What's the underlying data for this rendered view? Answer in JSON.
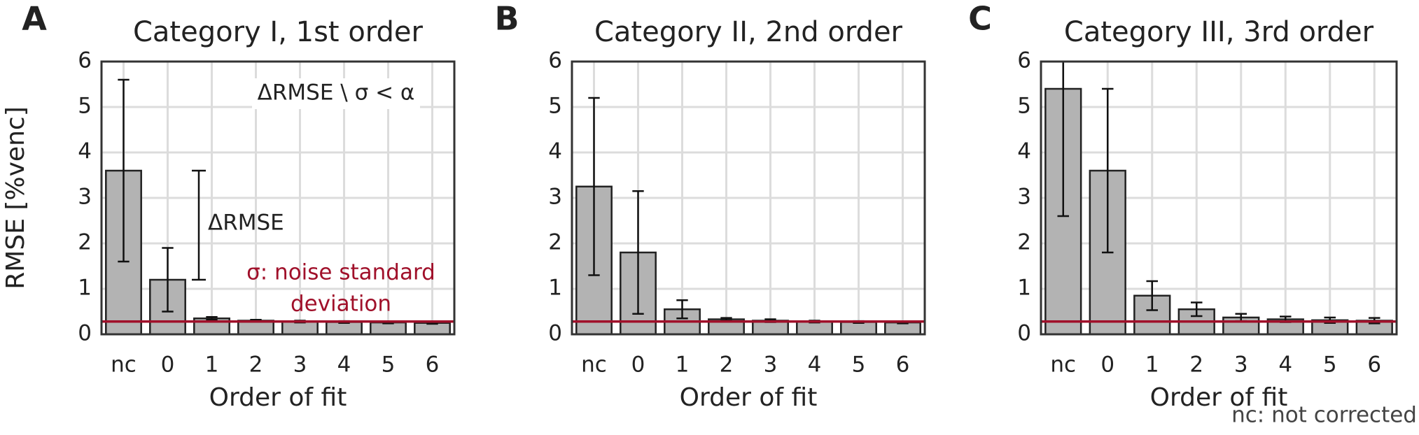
{
  "chart_data": [
    {
      "type": "bar",
      "panel_label": "A",
      "title": "Category I, 1st order",
      "xlabel": "Order of fit",
      "ylabel": "RMSE [%venc]",
      "categories": [
        "nc",
        "0",
        "1",
        "2",
        "3",
        "4",
        "5",
        "6"
      ],
      "values": [
        3.6,
        1.2,
        0.35,
        0.3,
        0.28,
        0.27,
        0.26,
        0.25
      ],
      "errors": [
        2.0,
        0.7,
        0.03,
        0.02,
        0.02,
        0.02,
        0.02,
        0.02
      ],
      "noise_level": 0.28,
      "color": "#b3b3b3",
      "noise_color": "#a0102a",
      "ylim": [
        0,
        6
      ],
      "yticks": [
        0,
        1,
        2,
        3,
        4,
        5,
        6
      ],
      "grid": true,
      "annotations": [
        "ΔRMSE \\ σ < α",
        "ΔRMSE",
        "σ: noise standard",
        "deviation"
      ]
    },
    {
      "type": "bar",
      "panel_label": "B",
      "title": "Category II, 2nd order",
      "xlabel": "Order of fit",
      "categories": [
        "nc",
        "0",
        "1",
        "2",
        "3",
        "4",
        "5",
        "6"
      ],
      "values": [
        3.25,
        1.8,
        0.55,
        0.33,
        0.3,
        0.28,
        0.27,
        0.26
      ],
      "errors": [
        1.95,
        1.35,
        0.2,
        0.03,
        0.03,
        0.02,
        0.02,
        0.02
      ],
      "noise_level": 0.28,
      "color": "#b3b3b3",
      "noise_color": "#a0102a",
      "ylim": [
        0,
        6
      ],
      "yticks": [
        0,
        1,
        2,
        3,
        4,
        5,
        6
      ],
      "grid": true
    },
    {
      "type": "bar",
      "panel_label": "C",
      "title": "Category III, 3rd order",
      "xlabel": "Order of fit",
      "categories": [
        "nc",
        "0",
        "1",
        "2",
        "3",
        "4",
        "5",
        "6"
      ],
      "values": [
        5.4,
        3.6,
        0.85,
        0.55,
        0.37,
        0.33,
        0.31,
        0.3
      ],
      "errors": [
        2.8,
        1.8,
        0.32,
        0.15,
        0.08,
        0.06,
        0.06,
        0.06
      ],
      "noise_level": 0.28,
      "color": "#b3b3b3",
      "noise_color": "#a0102a",
      "ylim": [
        0,
        6
      ],
      "yticks": [
        0,
        1,
        2,
        3,
        4,
        5,
        6
      ],
      "grid": true,
      "footnote": "nc: not corrected"
    }
  ]
}
